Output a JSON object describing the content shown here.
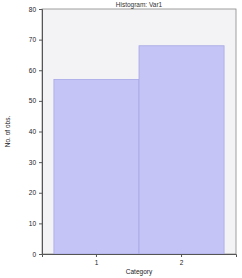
{
  "chart_data": {
    "type": "bar",
    "title": "Histogram: Var1",
    "x_label": "Category",
    "y_label": "No. of obs.",
    "categories": [
      "1",
      "2"
    ],
    "values": [
      57,
      68
    ],
    "color": "#c4c4f6",
    "ylim": [
      0,
      80
    ],
    "yticks": [
      0,
      10,
      20,
      30,
      40,
      50,
      60,
      70,
      80
    ]
  }
}
